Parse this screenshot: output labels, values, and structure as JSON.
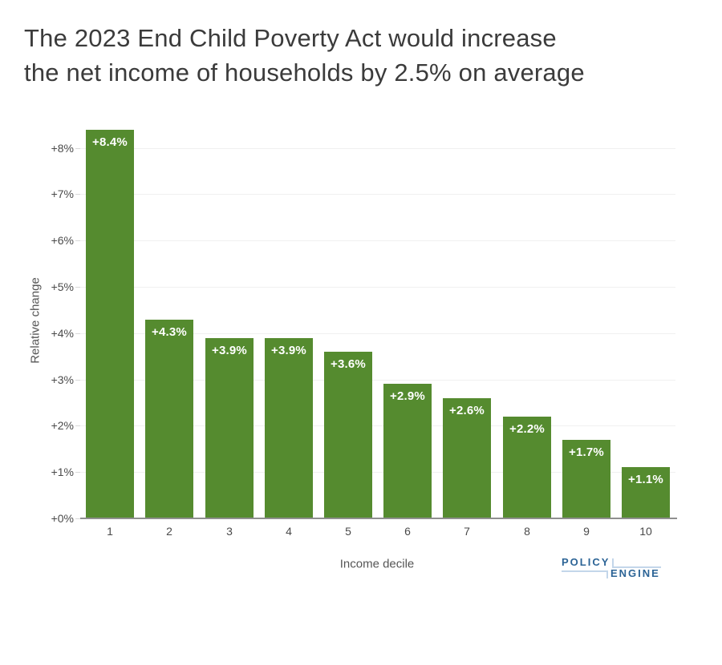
{
  "title": {
    "line1": "The 2023 End Child Poverty Act would increase",
    "line2": "the net income of households by 2.5% on average"
  },
  "chart_data": {
    "type": "bar",
    "categories": [
      "1",
      "2",
      "3",
      "4",
      "5",
      "6",
      "7",
      "8",
      "9",
      "10"
    ],
    "values": [
      8.4,
      4.3,
      3.9,
      3.9,
      3.6,
      2.9,
      2.6,
      2.2,
      1.7,
      1.1
    ],
    "bar_labels": [
      "+8.4%",
      "+4.3%",
      "+3.9%",
      "+3.9%",
      "+3.6%",
      "+2.9%",
      "+2.6%",
      "+2.2%",
      "+1.7%",
      "+1.1%"
    ],
    "xlabel": "Income decile",
    "ylabel": "Relative change",
    "yticks": [
      {
        "value": 0,
        "label": "+0%"
      },
      {
        "value": 1,
        "label": "+1%"
      },
      {
        "value": 2,
        "label": "+2%"
      },
      {
        "value": 3,
        "label": "+3%"
      },
      {
        "value": 4,
        "label": "+4%"
      },
      {
        "value": 5,
        "label": "+5%"
      },
      {
        "value": 6,
        "label": "+6%"
      },
      {
        "value": 7,
        "label": "+7%"
      },
      {
        "value": 8,
        "label": "+8%"
      }
    ],
    "ylim": [
      0,
      8.6
    ],
    "grid": true,
    "legend": "none",
    "bar_color": "#558B2F",
    "bar_label_color": "#ffffff"
  },
  "branding": {
    "word_top": "POLICY",
    "word_bottom": "ENGINE",
    "color_dark": "#2C6496",
    "color_light": "#c3d6ea"
  }
}
